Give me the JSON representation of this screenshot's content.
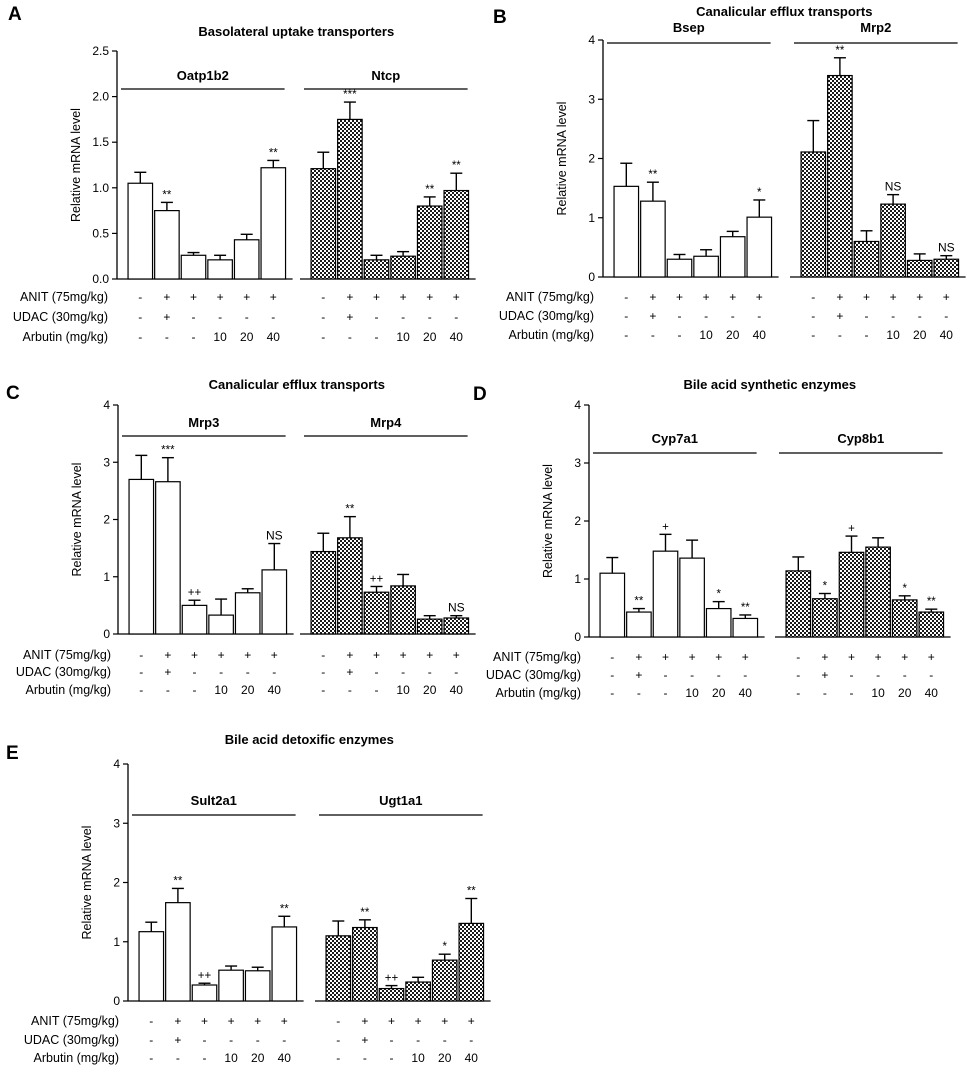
{
  "figure": {
    "row_labels": [
      "ANIT (75mg/kg)",
      "UDAC (30mg/kg)",
      "Arbutin (mg/kg)"
    ],
    "treatments": [
      [
        "-",
        "+",
        "+",
        "+",
        "+",
        "+"
      ],
      [
        "-",
        "+",
        "-",
        "-",
        "-",
        "-"
      ],
      [
        "-",
        "-",
        "-",
        "10",
        "20",
        "40"
      ]
    ]
  },
  "chart_data": [
    {
      "panel": "A",
      "type": "bar",
      "title": "Basolateral uptake transporters",
      "ylabel": "Relative mRNA level",
      "ylim": [
        0,
        2.5
      ],
      "yticks": [
        "0.0",
        "0.5",
        "1.0",
        "1.5",
        "2.0",
        "2.5"
      ],
      "groups": [
        {
          "name": "Oatp1b2",
          "fill": "white",
          "values": [
            1.05,
            0.75,
            0.26,
            0.21,
            0.43,
            1.22
          ],
          "errors": [
            0.12,
            0.09,
            0.03,
            0.05,
            0.06,
            0.08
          ],
          "annotations": [
            "",
            "**",
            "",
            "",
            "",
            "**"
          ]
        },
        {
          "name": "Ntcp",
          "fill": "checker",
          "values": [
            1.21,
            1.75,
            0.21,
            0.25,
            0.8,
            0.97
          ],
          "errors": [
            0.18,
            0.19,
            0.05,
            0.05,
            0.1,
            0.19
          ],
          "annotations": [
            "",
            "***",
            "",
            "",
            "**",
            "**"
          ]
        }
      ]
    },
    {
      "panel": "B",
      "type": "bar",
      "title": "Canalicular efflux transports",
      "ylabel": "Relative mRNA level",
      "ylim": [
        0,
        4
      ],
      "yticks": [
        "0",
        "1",
        "2",
        "3",
        "4"
      ],
      "groups": [
        {
          "name": "Bsep",
          "fill": "white",
          "values": [
            1.53,
            1.28,
            0.3,
            0.35,
            0.68,
            1.01
          ],
          "errors": [
            0.39,
            0.32,
            0.08,
            0.11,
            0.09,
            0.29
          ],
          "annotations": [
            "",
            "**",
            "",
            "",
            "",
            "*"
          ]
        },
        {
          "name": "Mrp2",
          "fill": "checker",
          "values": [
            2.11,
            3.4,
            0.6,
            1.23,
            0.28,
            0.3
          ],
          "errors": [
            0.53,
            0.3,
            0.18,
            0.16,
            0.11,
            0.06
          ],
          "annotations": [
            "",
            "**",
            "",
            "NS",
            "",
            "NS"
          ]
        }
      ]
    },
    {
      "panel": "C",
      "type": "bar",
      "title": "Canalicular efflux transports",
      "ylabel": "Relative mRNA level",
      "ylim": [
        0,
        4
      ],
      "yticks": [
        "0",
        "1",
        "2",
        "3",
        "4"
      ],
      "groups": [
        {
          "name": "Mrp3",
          "fill": "white",
          "values": [
            2.7,
            2.66,
            0.5,
            0.33,
            0.72,
            1.12
          ],
          "errors": [
            0.42,
            0.42,
            0.09,
            0.28,
            0.07,
            0.46
          ],
          "annotations": [
            "",
            "***",
            "++",
            "",
            "",
            "NS"
          ]
        },
        {
          "name": "Mrp4",
          "fill": "checker",
          "values": [
            1.44,
            1.68,
            0.73,
            0.84,
            0.26,
            0.28
          ],
          "errors": [
            0.32,
            0.37,
            0.1,
            0.2,
            0.06,
            0.04
          ],
          "annotations": [
            "",
            "**",
            "++",
            "",
            "",
            "NS"
          ]
        }
      ]
    },
    {
      "panel": "D",
      "type": "bar",
      "title": "Bile acid synthetic enzymes",
      "ylabel": "Relative mRNA level",
      "ylim": [
        0,
        4
      ],
      "yticks": [
        "0",
        "1",
        "2",
        "3",
        "4"
      ],
      "groups": [
        {
          "name": "Cyp7a1",
          "fill": "white",
          "values": [
            1.1,
            0.43,
            1.48,
            1.36,
            0.49,
            0.32
          ],
          "errors": [
            0.27,
            0.06,
            0.29,
            0.31,
            0.12,
            0.06
          ],
          "annotations": [
            "",
            "**",
            "+",
            "",
            "*",
            "**"
          ]
        },
        {
          "name": "Cyp8b1",
          "fill": "checker",
          "values": [
            1.14,
            0.66,
            1.46,
            1.55,
            0.64,
            0.43
          ],
          "errors": [
            0.24,
            0.09,
            0.28,
            0.16,
            0.07,
            0.05
          ],
          "annotations": [
            "",
            "*",
            "+",
            "",
            "*",
            "**"
          ]
        }
      ]
    },
    {
      "panel": "E",
      "type": "bar",
      "title": "Bile acid detoxific enzymes",
      "ylabel": "Relative mRNA level",
      "ylim": [
        0,
        4
      ],
      "yticks": [
        "0",
        "1",
        "2",
        "3",
        "4"
      ],
      "groups": [
        {
          "name": "Sult2a1",
          "fill": "white",
          "values": [
            1.17,
            1.66,
            0.27,
            0.52,
            0.51,
            1.25
          ],
          "errors": [
            0.16,
            0.24,
            0.03,
            0.07,
            0.06,
            0.18
          ],
          "annotations": [
            "",
            "**",
            "++",
            "",
            "",
            "**"
          ]
        },
        {
          "name": "Ugt1a1",
          "fill": "checker",
          "values": [
            1.1,
            1.24,
            0.21,
            0.32,
            0.69,
            1.31
          ],
          "errors": [
            0.25,
            0.13,
            0.05,
            0.08,
            0.1,
            0.42
          ],
          "annotations": [
            "",
            "**",
            "++",
            "",
            "*",
            "**"
          ]
        }
      ]
    }
  ]
}
